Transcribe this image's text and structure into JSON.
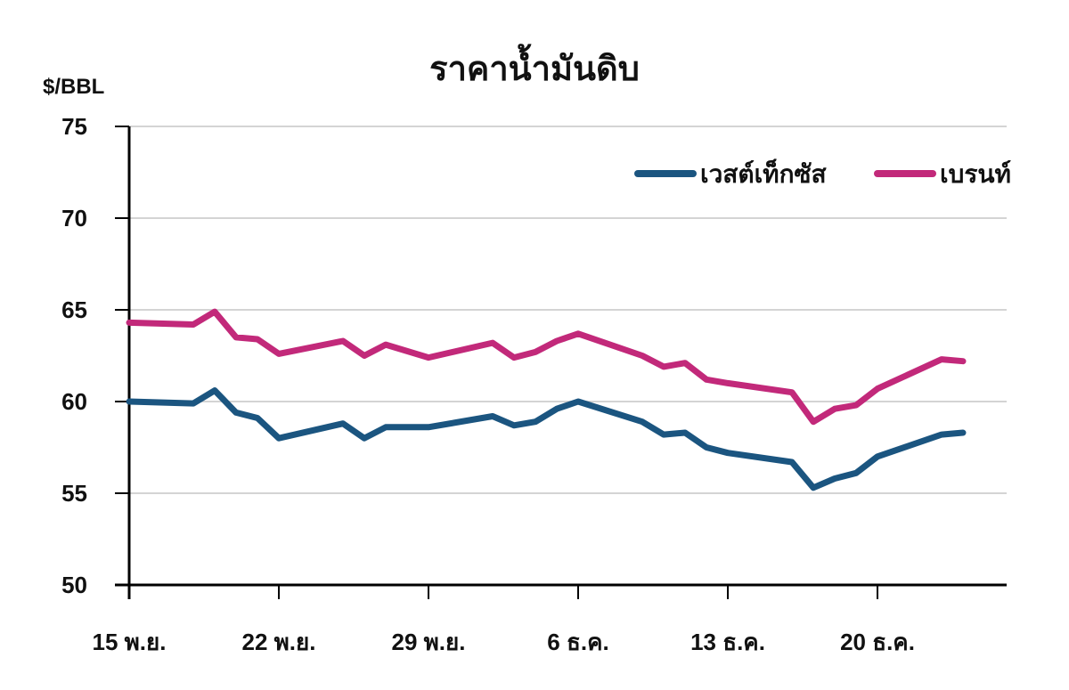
{
  "chart_data": {
    "type": "line",
    "title": "ราคาน้ำมันดิบ",
    "ylabel": "$/BBL",
    "xlabel": "",
    "ylim": [
      50,
      75
    ],
    "yticks": [
      50,
      55,
      60,
      65,
      70,
      75
    ],
    "xtick_labels": [
      "15 พ.ย.",
      "22 พ.ย.",
      "29 พ.ย.",
      "6 ธ.ค.",
      "13 ธ.ค.",
      "20 ธ.ค."
    ],
    "grid": true,
    "legend_position": "top-right",
    "x": [
      "15 พ.ย.",
      "18 พ.ย.",
      "19 พ.ย.",
      "20 พ.ย.",
      "21 พ.ย.",
      "22 พ.ย.",
      "25 พ.ย.",
      "26 พ.ย.",
      "27 พ.ย.",
      "29 พ.ย.",
      "2 ธ.ค.",
      "3 ธ.ค.",
      "4 ธ.ค.",
      "5 ธ.ค.",
      "6 ธ.ค.",
      "9 ธ.ค.",
      "10 ธ.ค.",
      "11 ธ.ค.",
      "12 ธ.ค.",
      "13 ธ.ค.",
      "16 ธ.ค.",
      "17 ธ.ค.",
      "18 ธ.ค.",
      "19 ธ.ค.",
      "20 ธ.ค.",
      "23 ธ.ค.",
      "24 ธ.ค."
    ],
    "x_day_offset": [
      0,
      3,
      4,
      5,
      6,
      7,
      10,
      11,
      12,
      14,
      17,
      18,
      19,
      20,
      21,
      24,
      25,
      26,
      27,
      28,
      31,
      32,
      33,
      34,
      35,
      38,
      39
    ],
    "series": [
      {
        "name": "เวสต์เท็กซัส",
        "color": "#1b5580",
        "values": [
          60.0,
          59.9,
          60.6,
          59.4,
          59.1,
          58.0,
          58.8,
          58.0,
          58.6,
          58.6,
          59.2,
          58.7,
          58.9,
          59.6,
          60.0,
          58.9,
          58.2,
          58.3,
          57.5,
          57.2,
          56.7,
          55.3,
          55.8,
          56.1,
          57.0,
          58.2,
          58.3
        ]
      },
      {
        "name": "เบรนท์",
        "color": "#c2297a",
        "values": [
          64.3,
          64.2,
          64.9,
          63.5,
          63.4,
          62.6,
          63.3,
          62.5,
          63.1,
          62.4,
          63.2,
          62.4,
          62.7,
          63.3,
          63.7,
          62.5,
          61.9,
          62.1,
          61.2,
          61.0,
          60.5,
          58.9,
          59.6,
          59.8,
          60.7,
          62.3,
          62.2
        ]
      }
    ]
  }
}
